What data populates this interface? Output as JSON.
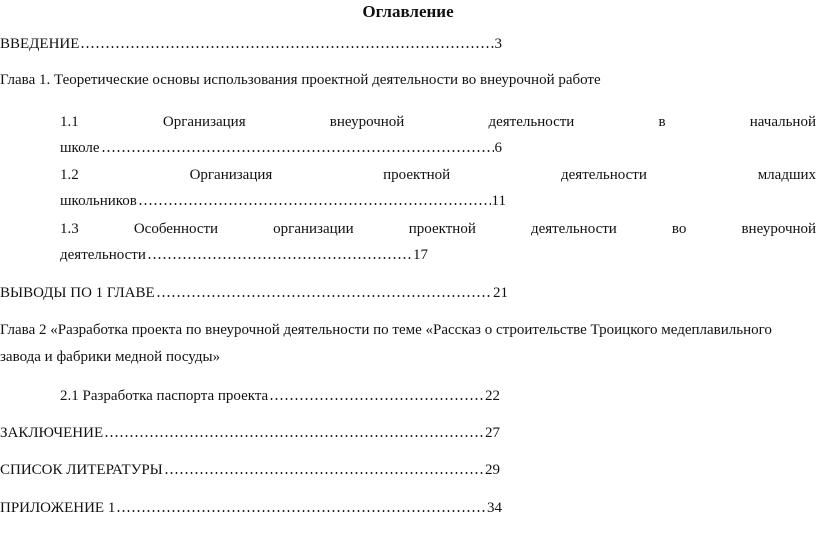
{
  "title": "Оглавление",
  "entries": {
    "intro": {
      "text": "ВВЕДЕНИЕ",
      "page": "3"
    },
    "ch1": {
      "text": "Глава 1. Теоретические основы использования проектной деятельности во внеурочной работе"
    },
    "s11": {
      "words": [
        "1.1",
        "Организация",
        "внеурочной",
        "деятельности",
        "в",
        "начальной"
      ],
      "cont": "школе",
      "page": "6"
    },
    "s12": {
      "words": [
        "1.2",
        "Организация",
        "проектной",
        "деятельности",
        "младших"
      ],
      "cont": "школьников",
      "page": "11"
    },
    "s13": {
      "words": [
        "1.3",
        "Особенности",
        "организации",
        "проектной",
        "деятельности",
        "во",
        "внеурочной"
      ],
      "cont": "деятельности",
      "page": "17"
    },
    "conc1": {
      "text": "ВЫВОДЫ ПО 1 ГЛАВЕ",
      "page": "21"
    },
    "ch2": {
      "line1": "Глава 2 «Разработка проекта по внеурочной деятельности по теме «Рассказ о строительстве Троицкого медеплавильного",
      "line2": "завода и фабрики медной посуды»"
    },
    "s21": {
      "text": "2.1 Разработка паспорта проекта",
      "page": "22"
    },
    "conclusion": {
      "text": "ЗАКЛЮЧЕНИЕ",
      "page": "27"
    },
    "refs": {
      "text": "СПИСОК ЛИТЕРАТУРЫ",
      "page": "29"
    },
    "appendix": {
      "text": "ПРИЛОЖЕНИЕ 1",
      "page": "34"
    }
  }
}
